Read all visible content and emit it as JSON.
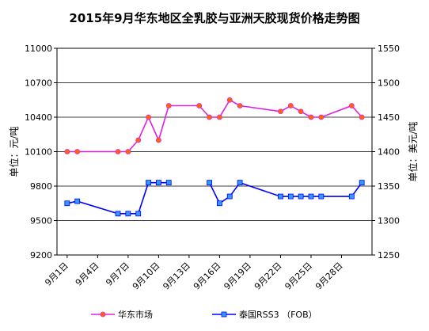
{
  "chart_data": {
    "type": "line",
    "title": "2015年9月华东地区全乳胶与亚洲天胶现货价格走势图",
    "ylabel_left": "单位：元/吨",
    "ylabel_right": "单位：美元/吨",
    "ylim_left": [
      9200,
      11000
    ],
    "yticks_left": [
      9200,
      9500,
      9800,
      10100,
      10400,
      10700,
      11000
    ],
    "ylim_right": [
      1250,
      1550
    ],
    "yticks_right": [
      1250,
      1300,
      1350,
      1400,
      1450,
      1500,
      1550
    ],
    "xlim": [
      0,
      31
    ],
    "xticks": [
      {
        "pos": 1,
        "label": "9月1日"
      },
      {
        "pos": 4,
        "label": "9月4日"
      },
      {
        "pos": 7,
        "label": "9月7日"
      },
      {
        "pos": 10,
        "label": "9月10日"
      },
      {
        "pos": 13,
        "label": "9月13日"
      },
      {
        "pos": 16,
        "label": "9月16日"
      },
      {
        "pos": 19,
        "label": "9月19日"
      },
      {
        "pos": 22,
        "label": "9月22日"
      },
      {
        "pos": 25,
        "label": "9月25日"
      },
      {
        "pos": 28,
        "label": "9月28日"
      }
    ],
    "grid": true,
    "legend_position": "bottom",
    "series": [
      {
        "name": "华东市场",
        "axis": "left",
        "color": "#e020e0",
        "marker_fill": "#ff6600",
        "marker": "circle",
        "points": [
          [
            1,
            10100
          ],
          [
            2,
            10100
          ],
          [
            6,
            10100
          ],
          [
            7,
            10100
          ],
          [
            8,
            10200
          ],
          [
            9,
            10400
          ],
          [
            10,
            10200
          ],
          [
            11,
            10500
          ],
          [
            14,
            10500
          ],
          [
            15,
            10400
          ],
          [
            16,
            10400
          ],
          [
            17,
            10550
          ],
          [
            18,
            10500
          ],
          [
            22,
            10450
          ],
          [
            23,
            10500
          ],
          [
            24,
            10450
          ],
          [
            25,
            10400
          ],
          [
            26,
            10400
          ],
          [
            29,
            10500
          ],
          [
            30,
            10400
          ]
        ]
      },
      {
        "name": "泰国RSS3 （FOB）",
        "axis": "right",
        "color": "#0000ff",
        "marker_fill": "#3399ff",
        "marker": "square",
        "points": [
          [
            1,
            1325
          ],
          [
            2,
            1328
          ],
          [
            6,
            1310
          ],
          [
            7,
            1310
          ],
          [
            8,
            1310
          ],
          [
            9,
            1355
          ],
          [
            10,
            1355
          ],
          [
            11,
            1355
          ],
          [
            null,
            null
          ],
          [
            15,
            1355
          ],
          [
            16,
            1325
          ],
          [
            17,
            1335
          ],
          [
            18,
            1355
          ],
          [
            22,
            1335
          ],
          [
            23,
            1335
          ],
          [
            24,
            1335
          ],
          [
            25,
            1335
          ],
          [
            26,
            1335
          ],
          [
            29,
            1335
          ],
          [
            30,
            1355
          ]
        ]
      }
    ]
  }
}
